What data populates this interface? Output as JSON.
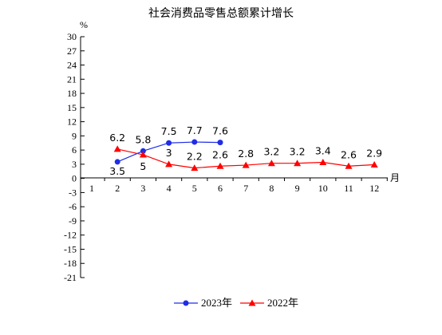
{
  "chart_data": {
    "type": "line",
    "title": "社会消费品零售总额累计增长",
    "ylabel": "%",
    "xlabel": "月",
    "categories": [
      "1",
      "2",
      "3",
      "4",
      "5",
      "6",
      "7",
      "8",
      "9",
      "10",
      "11",
      "12"
    ],
    "ylim": [
      -21,
      30
    ],
    "yticks": [
      30,
      27,
      24,
      21,
      18,
      15,
      12,
      9,
      6,
      3,
      0,
      -3,
      -6,
      -9,
      -12,
      -15,
      -18,
      -21
    ],
    "grid": false,
    "legend_position": "bottom",
    "series": [
      {
        "name": "2023年",
        "color": "#1f2de6",
        "marker": "circle",
        "values": [
          null,
          3.5,
          5.8,
          7.5,
          7.7,
          7.6,
          null,
          null,
          null,
          null,
          null,
          null
        ],
        "labels": [
          "",
          "3.5",
          "5.8",
          "7.5",
          "7.7",
          "7.6",
          "",
          "",
          "",
          "",
          "",
          ""
        ]
      },
      {
        "name": "2022年",
        "color": "#ff0000",
        "marker": "triangle",
        "values": [
          null,
          6.2,
          5,
          3,
          2.2,
          2.6,
          2.8,
          3.2,
          3.2,
          3.4,
          2.6,
          2.9
        ],
        "labels": [
          "",
          "6.2",
          "5",
          "3",
          "2.2",
          "2.6",
          "2.8",
          "3.2",
          "3.2",
          "3.4",
          "2.6",
          "2.9"
        ]
      }
    ]
  }
}
